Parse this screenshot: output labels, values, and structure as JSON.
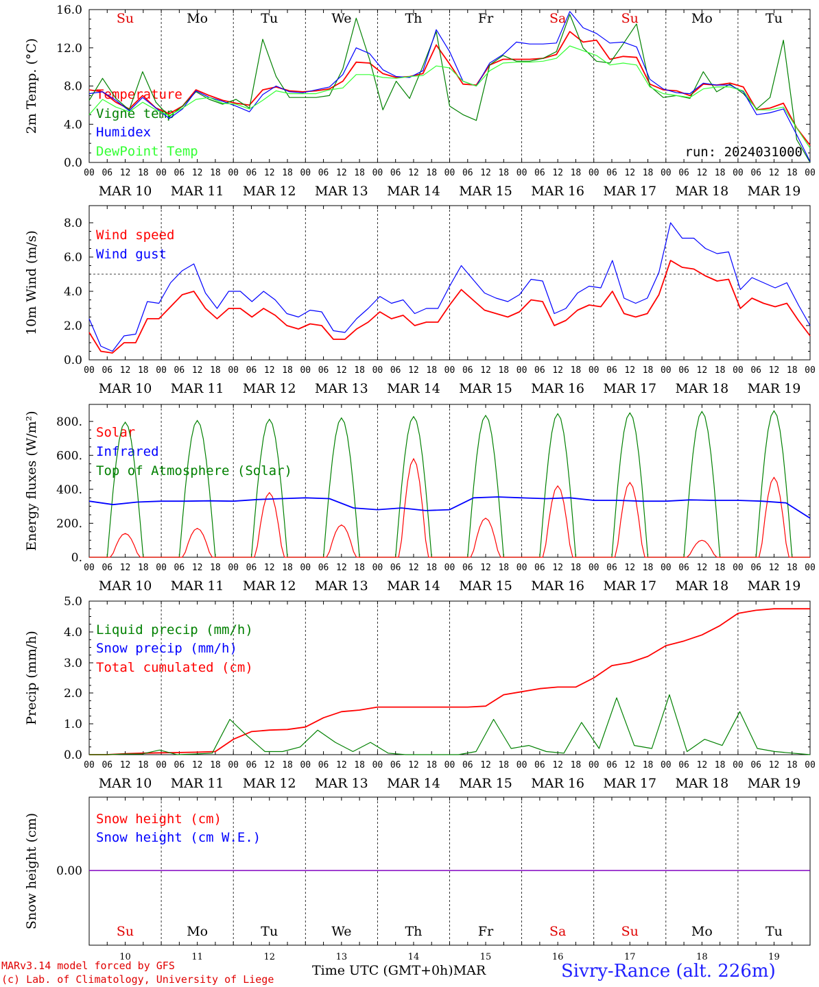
{
  "days": [
    "MAR 10",
    "MAR 11",
    "MAR 12",
    "MAR 13",
    "MAR 14",
    "MAR 15",
    "MAR 16",
    "MAR 17",
    "MAR 18",
    "MAR 19"
  ],
  "day_nums": [
    "10",
    "11",
    "12",
    "13",
    "14",
    "15",
    "16",
    "17",
    "18",
    "19"
  ],
  "weekdays": [
    "Su",
    "Mo",
    "Tu",
    "We",
    "Th",
    "Fr",
    "Sa",
    "Su",
    "Mo",
    "Tu"
  ],
  "weekend_color": "#e00000",
  "hour_ticks": [
    "00",
    "06",
    "12",
    "18"
  ],
  "colors": {
    "red": "#ff0000",
    "green": "#008000",
    "blue": "#0000ff",
    "lightgreen": "#33ff33",
    "purple": "#8000c0"
  },
  "footer": {
    "model": "MARv3.14 model forced by GFS",
    "lab": "(c) Lab. of Climatology, University of Liege",
    "xaxis": "Time UTC (GMT+0h)",
    "month": "MAR",
    "station": "Sivry-Rance (alt. 226m)"
  },
  "chart_data": [
    {
      "type": "line",
      "ylabel": "2m Temp. (°C)",
      "ylim": [
        0,
        16
      ],
      "yticks": [
        "0.0",
        "4.0",
        "8.0",
        "12.0",
        "16.0"
      ],
      "annotation": "run: 2024031000",
      "legend": [
        "Temperature",
        "Vigne temp",
        "Humidex",
        "DewPoint Temp"
      ],
      "x_hours_step": 6,
      "series": [
        {
          "name": "Temperature",
          "color": "red",
          "values": [
            7.6,
            7.4,
            6.3,
            5.6,
            7.0,
            5.7,
            5.1,
            5.9,
            7.6,
            7.0,
            6.5,
            6.2,
            6.0,
            7.6,
            7.9,
            7.5,
            7.4,
            7.5,
            7.7,
            8.5,
            10.5,
            10.4,
            9.3,
            8.9,
            9.0,
            9.3,
            12.3,
            10.3,
            8.2,
            8.1,
            10.2,
            10.8,
            10.8,
            10.8,
            10.9,
            11.3,
            13.7,
            12.6,
            12.8,
            10.8,
            11.1,
            11.0,
            8.2,
            7.6,
            7.5,
            7.0,
            8.2,
            8.1,
            8.3,
            7.9,
            5.5,
            5.7,
            6.2,
            3.6,
            1.8
          ]
        },
        {
          "name": "Vigne temp",
          "color": "green",
          "values": [
            6.5,
            8.8,
            6.7,
            5.5,
            9.5,
            6.3,
            4.8,
            5.9,
            7.4,
            6.6,
            6.1,
            6.6,
            5.7,
            12.9,
            9.0,
            6.8,
            6.8,
            6.8,
            7.0,
            9.8,
            15.1,
            10.8,
            5.5,
            8.5,
            6.7,
            10.1,
            13.7,
            5.9,
            5.0,
            4.4,
            10.2,
            11.2,
            10.6,
            10.6,
            10.9,
            11.6,
            15.5,
            12.0,
            10.6,
            10.4,
            12.4,
            14.5,
            8.0,
            6.8,
            7.0,
            6.7,
            9.5,
            7.4,
            8.2,
            7.2,
            5.6,
            6.8,
            12.8,
            2.4,
            0.0
          ]
        },
        {
          "name": "Humidex",
          "color": "blue",
          "values": [
            7.2,
            7.4,
            6.5,
            5.4,
            6.8,
            5.7,
            4.6,
            5.6,
            7.5,
            6.8,
            6.4,
            5.9,
            5.3,
            7.1,
            8.0,
            7.4,
            7.3,
            7.6,
            7.9,
            9.2,
            12.0,
            11.4,
            9.7,
            9.0,
            8.9,
            9.6,
            13.9,
            11.6,
            8.5,
            8.0,
            10.4,
            11.3,
            12.6,
            12.4,
            12.4,
            12.5,
            15.8,
            14.1,
            13.5,
            12.5,
            12.6,
            12.1,
            8.7,
            7.7,
            7.3,
            7.2,
            8.3,
            8.1,
            8.1,
            7.4,
            5.0,
            5.2,
            5.6,
            2.9,
            0.1
          ]
        },
        {
          "name": "DewPoint Temp",
          "color": "lightgreen",
          "values": [
            5.0,
            6.6,
            5.8,
            5.3,
            6.3,
            5.5,
            4.9,
            5.7,
            6.6,
            6.8,
            6.2,
            6.1,
            5.6,
            6.5,
            7.5,
            7.2,
            7.2,
            7.2,
            7.6,
            7.8,
            9.2,
            9.2,
            8.9,
            8.8,
            9.0,
            9.1,
            10.1,
            9.9,
            8.5,
            8.0,
            9.6,
            10.4,
            10.5,
            10.5,
            10.6,
            10.9,
            12.2,
            11.7,
            11.2,
            10.2,
            10.4,
            10.2,
            7.9,
            7.2,
            7.0,
            6.8,
            7.7,
            7.9,
            7.9,
            7.5,
            5.5,
            5.5,
            5.8,
            3.6,
            1.5
          ]
        }
      ]
    },
    {
      "type": "line",
      "ylabel": "10m Wind (m/s)",
      "ylim": [
        0,
        9
      ],
      "yticks": [
        "0.0",
        "2.0",
        "4.0",
        "6.0",
        "8.0"
      ],
      "reference_line": 5,
      "legend": [
        "Wind speed",
        "Wind gust"
      ],
      "x_hours_step": 6,
      "series": [
        {
          "name": "Wind speed",
          "color": "red",
          "values": [
            1.6,
            0.5,
            0.4,
            1.0,
            1.0,
            2.4,
            2.4,
            3.1,
            3.8,
            4.0,
            3.0,
            2.4,
            3.0,
            3.0,
            2.5,
            3.0,
            2.6,
            2.0,
            1.8,
            2.1,
            2.0,
            1.2,
            1.2,
            1.8,
            2.2,
            2.8,
            2.4,
            2.6,
            2.0,
            2.2,
            2.2,
            3.2,
            4.1,
            3.5,
            2.9,
            2.7,
            2.5,
            2.8,
            3.5,
            3.4,
            2.0,
            2.3,
            2.9,
            3.2,
            3.1,
            4.0,
            2.7,
            2.5,
            2.7,
            3.8,
            5.8,
            5.4,
            5.3,
            4.9,
            4.6,
            4.7,
            3.0,
            3.6,
            3.3,
            3.1,
            3.3,
            2.3,
            1.4
          ]
        },
        {
          "name": "Wind gust",
          "color": "blue",
          "values": [
            2.4,
            0.8,
            0.5,
            1.4,
            1.5,
            3.4,
            3.3,
            4.5,
            5.2,
            5.6,
            3.9,
            3.0,
            4.0,
            4.0,
            3.4,
            4.0,
            3.5,
            2.7,
            2.5,
            2.9,
            2.8,
            1.7,
            1.6,
            2.4,
            3.0,
            3.7,
            3.3,
            3.5,
            2.7,
            3.0,
            3.0,
            4.3,
            5.5,
            4.7,
            3.9,
            3.6,
            3.4,
            3.8,
            4.7,
            4.6,
            2.7,
            3.0,
            3.9,
            4.3,
            4.2,
            5.8,
            3.6,
            3.3,
            3.6,
            5.1,
            8.0,
            7.1,
            7.1,
            6.5,
            6.2,
            6.3,
            4.1,
            4.8,
            4.5,
            4.2,
            4.5,
            3.2,
            2.0
          ]
        }
      ]
    },
    {
      "type": "line",
      "ylabel": "Energy fluxes (W/m²)",
      "ylim": [
        0,
        900
      ],
      "yticks": [
        "0.",
        "200.",
        "400.",
        "600.",
        "800."
      ],
      "legend": [
        "Solar",
        "Infrared",
        "Top of Atmosphere (Solar)"
      ],
      "day_peaks": {
        "Solar": [
          140,
          170,
          380,
          190,
          580,
          230,
          420,
          440,
          100,
          470
        ],
        "Top of Atmosphere (Solar)": [
          795,
          805,
          812,
          820,
          828,
          835,
          845,
          850,
          858,
          862
        ]
      },
      "series": [
        {
          "name": "Infrared",
          "color": "blue",
          "values": [
            330,
            310,
            325,
            330,
            330,
            332,
            330,
            340,
            345,
            350,
            345,
            290,
            280,
            290,
            275,
            280,
            350,
            355,
            350,
            345,
            350,
            335,
            335,
            330,
            330,
            338,
            335,
            335,
            330,
            320,
            230
          ]
        }
      ]
    },
    {
      "type": "line",
      "ylabel": "Precip (mm/h)",
      "ylim": [
        0,
        5
      ],
      "yticks": [
        "0.0",
        "1.0",
        "2.0",
        "3.0",
        "4.0",
        "5.0"
      ],
      "legend": [
        "Liquid precip (mm/h)",
        "Snow precip (mm/h)",
        "Total cumulated (cm)"
      ],
      "x_hours_step": 6,
      "series": [
        {
          "name": "Total cumulated (cm)",
          "color": "red",
          "values": [
            0.0,
            0.0,
            0.03,
            0.05,
            0.06,
            0.07,
            0.08,
            0.1,
            0.5,
            0.75,
            0.8,
            0.82,
            0.9,
            1.2,
            1.4,
            1.45,
            1.55,
            1.55,
            1.55,
            1.55,
            1.55,
            1.55,
            1.58,
            1.95,
            2.05,
            2.15,
            2.2,
            2.2,
            2.5,
            2.9,
            3.0,
            3.2,
            3.55,
            3.7,
            3.9,
            4.2,
            4.6,
            4.7,
            4.75,
            4.75,
            4.75
          ]
        },
        {
          "name": "Liquid precip (mm/h)",
          "color": "green",
          "values": [
            0.0,
            0.0,
            0.02,
            0.02,
            0.15,
            0.0,
            0.02,
            0.05,
            1.15,
            0.6,
            0.1,
            0.1,
            0.25,
            0.8,
            0.4,
            0.1,
            0.4,
            0.05,
            0.0,
            0.0,
            0.0,
            0.0,
            0.1,
            1.15,
            0.2,
            0.3,
            0.1,
            0.05,
            1.05,
            0.2,
            1.85,
            0.3,
            0.2,
            1.95,
            0.1,
            0.5,
            0.3,
            1.4,
            0.2,
            0.1,
            0.05,
            0.0
          ]
        },
        {
          "name": "Snow precip (mm/h)",
          "color": "blue",
          "values": []
        }
      ]
    },
    {
      "type": "line",
      "ylabel": "Snow height (cm)",
      "yticks": [
        "0.00"
      ],
      "legend": [
        "Snow height (cm)",
        "Snow height (cm W.E.)"
      ],
      "series": [
        {
          "name": "Snow height (cm)",
          "color": "red",
          "values": [
            0,
            0
          ]
        },
        {
          "name": "Snow height (cm W.E.)",
          "color": "blue",
          "values": [
            0,
            0
          ]
        }
      ]
    }
  ]
}
